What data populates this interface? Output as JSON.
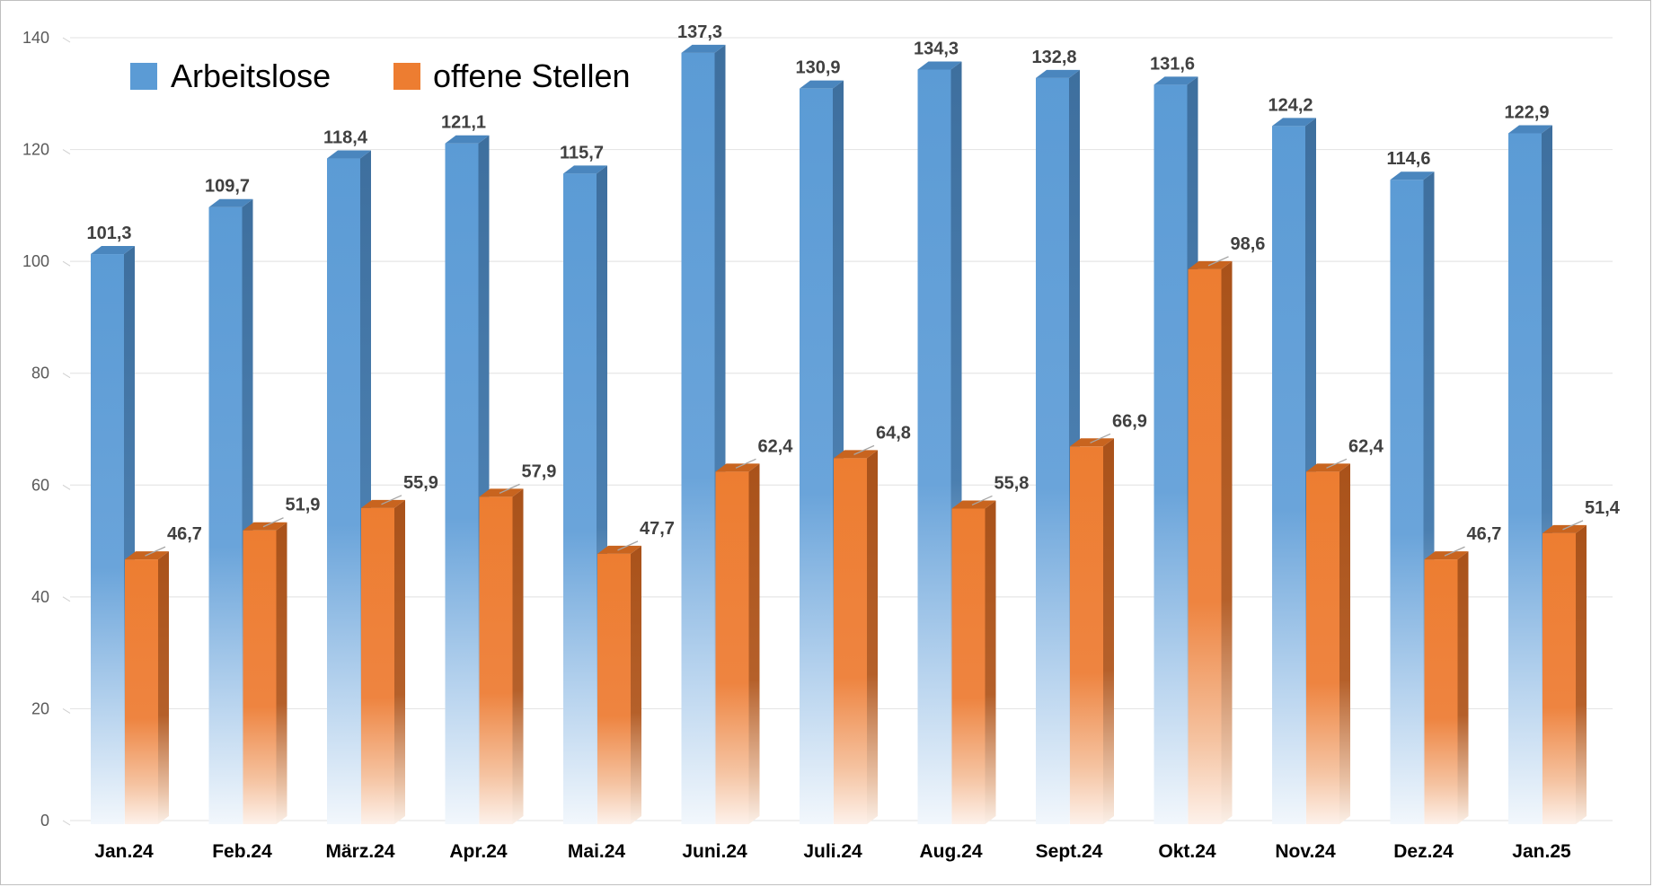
{
  "chart_data": {
    "type": "bar",
    "categories": [
      "Jan.24",
      "Feb.24",
      "März.24",
      "Apr.24",
      "Mai.24",
      "Juni.24",
      "Juli.24",
      "Aug.24",
      "Sept.24",
      "Okt.24",
      "Nov.24",
      "Dez.24",
      "Jan.25"
    ],
    "series": [
      {
        "name": "Arbeitslose",
        "color": "#5b9bd5",
        "values": [
          101.3,
          109.7,
          118.4,
          121.1,
          115.7,
          137.3,
          130.9,
          134.3,
          132.8,
          131.6,
          124.2,
          114.6,
          122.9
        ],
        "labels": [
          "101,3",
          "109,7",
          "118,4",
          "121,1",
          "115,7",
          "137,3",
          "130,9",
          "134,3",
          "132,8",
          "131,6",
          "124,2",
          "114,6",
          "122,9"
        ]
      },
      {
        "name": "offene Stellen",
        "color": "#ed7d31",
        "values": [
          46.7,
          51.9,
          55.9,
          57.9,
          47.7,
          62.4,
          64.8,
          55.8,
          66.9,
          98.6,
          62.4,
          46.7,
          51.4
        ],
        "labels": [
          "46,7",
          "51,9",
          "55,9",
          "57,9",
          "47,7",
          "62,4",
          "64,8",
          "55,8",
          "66,9",
          "98,6",
          "62,4",
          "46,7",
          "51,4"
        ]
      }
    ],
    "ylim": [
      0,
      140
    ],
    "yticks": [
      "0",
      "20",
      "40",
      "60",
      "80",
      "100",
      "120",
      "140"
    ],
    "yticks_values": [
      0,
      20,
      40,
      60,
      80,
      100,
      120,
      140
    ],
    "grid": true,
    "legend": "top-left",
    "title": "",
    "xlabel": "",
    "ylabel": ""
  }
}
